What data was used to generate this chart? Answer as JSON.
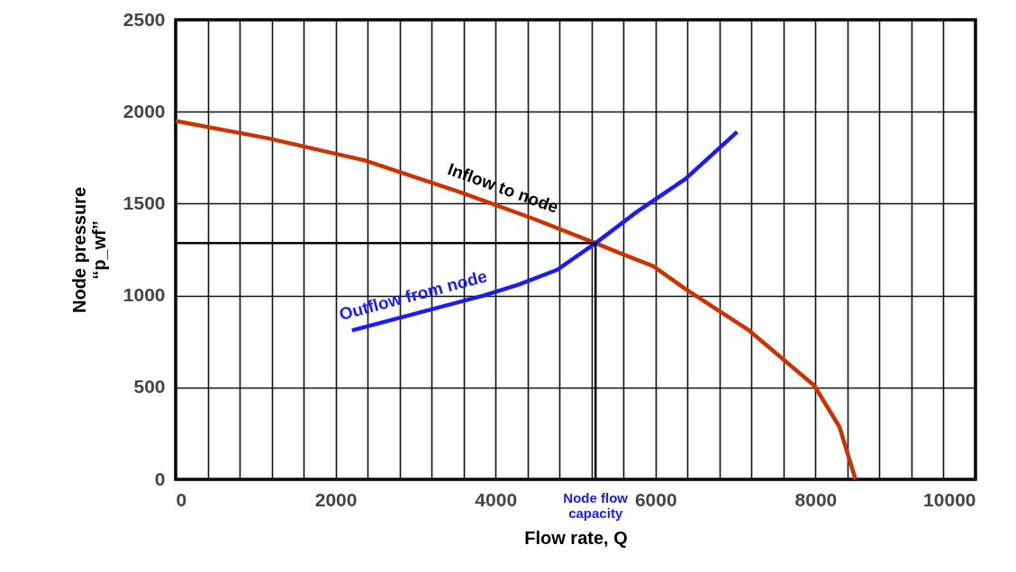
{
  "chart_data": {
    "type": "line",
    "xlabel": "Flow rate, Q",
    "ylabel": "Node pressure\n“p_wf”",
    "xlim": [
      0,
      10000
    ],
    "ylim": [
      0,
      2500
    ],
    "xticks": [
      0,
      {
        "value": 400,
        "label": null
      },
      {
        "value": 800,
        "label": null
      },
      {
        "value": 1200,
        "label": null
      },
      {
        "value": 1600,
        "label": null
      },
      2000,
      {
        "value": 2400,
        "label": null
      },
      {
        "value": 2800,
        "label": null
      },
      {
        "value": 3200,
        "label": null
      },
      {
        "value": 3600,
        "label": null
      },
      4000,
      {
        "value": 4400,
        "label": null
      },
      {
        "value": 4800,
        "label": null
      },
      {
        "value": 5200,
        "label": null
      },
      {
        "value": 5600,
        "label": null
      },
      6000,
      {
        "value": 6400,
        "label": null
      },
      {
        "value": 6800,
        "label": null
      },
      {
        "value": 7200,
        "label": null
      },
      {
        "value": 7600,
        "label": null
      },
      8000,
      {
        "value": 8400,
        "label": null
      },
      {
        "value": 8800,
        "label": null
      },
      {
        "value": 9200,
        "label": null
      },
      {
        "value": 9600,
        "label": null
      },
      10000
    ],
    "yticks": [
      0,
      500,
      1000,
      1500,
      2000,
      2500
    ],
    "grid": true,
    "legend": false,
    "line_style": "solid",
    "series": [
      {
        "name": "Inflow to node",
        "color": "#cc3300",
        "x": [
          0,
          1160,
          2365,
          3570,
          4460,
          5250,
          5560,
          5970,
          6375,
          7170,
          7985,
          8300,
          8500
        ],
        "values": [
          1950,
          1855,
          1735,
          1560,
          1420,
          1285,
          1230,
          1160,
          1035,
          810,
          510,
          285,
          0
        ]
      },
      {
        "name": "Outflow from node",
        "color": "#1a1aff",
        "x": [
          2205,
          3850,
          4290,
          4770,
          5250,
          5765,
          6375,
          7020
        ],
        "values": [
          810,
          1000,
          1060,
          1140,
          1285,
          1455,
          1635,
          1890
        ]
      },
      {
        "color": "#000000",
        "x": [
          0,
          5250,
          5250
        ],
        "values": [
          1285,
          1285,
          0
        ]
      }
    ],
    "annotations": [
      {
        "text": "Node flow\ncapacity",
        "x": 5250,
        "y": 0
      }
    ]
  }
}
